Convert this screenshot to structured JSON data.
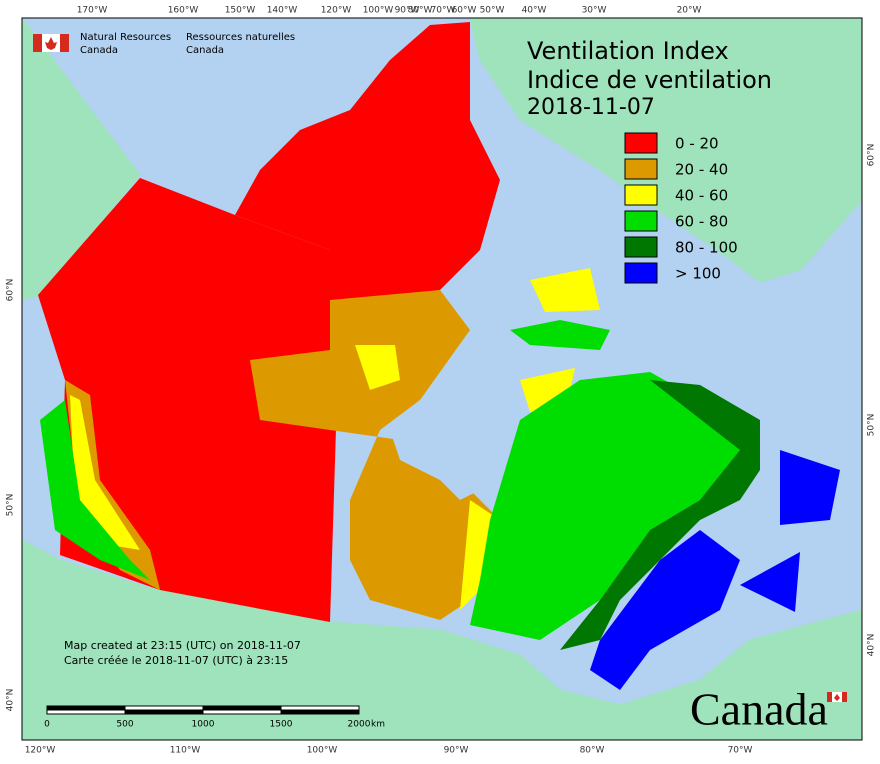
{
  "header": {
    "agency_en": [
      "Natural Resources",
      "Canada"
    ],
    "agency_fr": [
      "Ressources naturelles",
      "Canada"
    ]
  },
  "title": {
    "lines": [
      "Ventilation Index",
      "Indice de ventilation",
      "2018-11-07"
    ]
  },
  "legend": [
    {
      "label": "0 - 20",
      "color": "#ff0000"
    },
    {
      "label": "20 - 40",
      "color": "#dd9900"
    },
    {
      "label": "40 - 60",
      "color": "#ffff00"
    },
    {
      "label": "60 - 80",
      "color": "#00dd00"
    },
    {
      "label": "80 - 100",
      "color": "#007700"
    },
    {
      "label": "> 100",
      "color": "#0000ff"
    }
  ],
  "graticule": {
    "top": [
      "170°W",
      "160°W",
      "150°W",
      "140°W",
      "120°W",
      "100°W",
      "90°W",
      "80°W",
      "70°W",
      "60°W",
      "50°W",
      "40°W",
      "30°W",
      "20°W"
    ],
    "bottom": [
      "120°W",
      "110°W",
      "100°W",
      "90°W",
      "80°W",
      "70°W"
    ],
    "left": [
      "60°N",
      "50°N",
      "40°N"
    ],
    "right": [
      "60°N",
      "50°N",
      "40°N"
    ]
  },
  "notes": [
    "Map created at 23:15 (UTC) on 2018-11-07",
    "Carte créée le 2018-11-07 (UTC) à 23:15"
  ],
  "scale_bar": {
    "labels": [
      0,
      500,
      1000,
      1500,
      2000
    ],
    "unit": "km"
  },
  "wordmark": "Canada"
}
